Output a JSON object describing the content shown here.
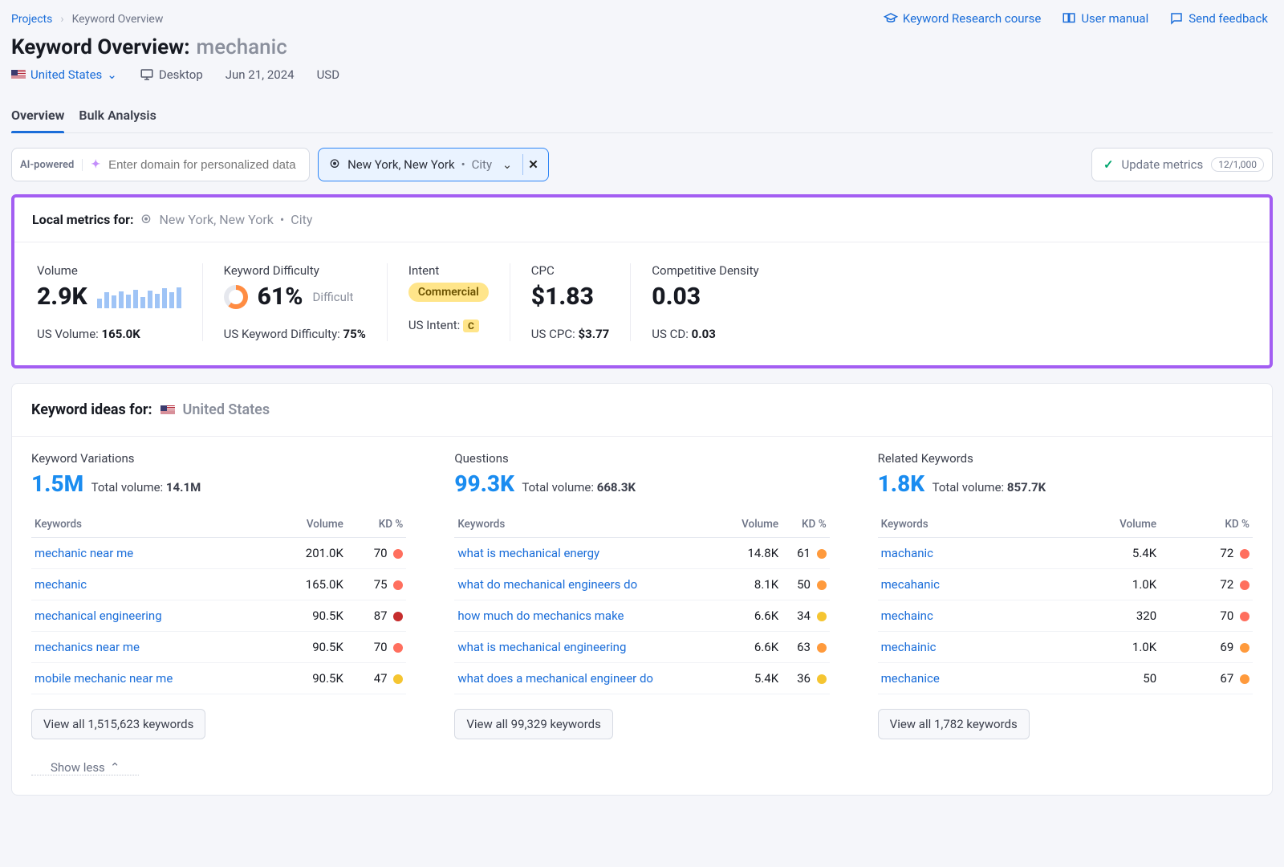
{
  "breadcrumbs": {
    "root": "Projects",
    "page": "Keyword Overview"
  },
  "toplinks": {
    "course": "Keyword Research course",
    "manual": "User manual",
    "feedback": "Send feedback"
  },
  "header": {
    "title": "Keyword Overview:",
    "keyword": "mechanic",
    "location": "United States",
    "device": "Desktop",
    "date": "Jun 21, 2024",
    "currency": "USD"
  },
  "tabs": {
    "overview": "Overview",
    "bulk": "Bulk Analysis"
  },
  "filters": {
    "ai_label": "AI-powered",
    "domain_placeholder": "Enter domain for personalized data",
    "loc_name": "New York, New York",
    "loc_type": "City",
    "update_label": "Update metrics",
    "update_count": "12/1,000"
  },
  "local": {
    "header_label": "Local metrics for:",
    "loc_name": "New York, New York",
    "loc_type": "City",
    "volume": {
      "label": "Volume",
      "value": "2.9K",
      "sub_label": "US Volume:",
      "sub_value": "165.0K",
      "bars": [
        40,
        70,
        55,
        75,
        60,
        82,
        50,
        78,
        62,
        88,
        70,
        92
      ]
    },
    "kd": {
      "label": "Keyword Difficulty",
      "value": "61%",
      "desc": "Difficult",
      "sub_label": "US Keyword Difficulty:",
      "sub_value": "75%",
      "donut_pct": 61,
      "donut_color": "#ff8c42"
    },
    "intent": {
      "label": "Intent",
      "badge": "Commercial",
      "sub_label": "US Intent:",
      "sub_badge": "C"
    },
    "cpc": {
      "label": "CPC",
      "value": "$1.83",
      "sub_label": "US CPC:",
      "sub_value": "$3.77"
    },
    "cd": {
      "label": "Competitive Density",
      "value": "0.03",
      "sub_label": "US CD:",
      "sub_value": "0.03"
    }
  },
  "ideas": {
    "header_label": "Keyword ideas for:",
    "country": "United States",
    "th_keywords": "Keywords",
    "th_volume": "Volume",
    "th_kd": "KD %",
    "show_less": "Show less",
    "variations": {
      "title": "Keyword Variations",
      "count": "1.5M",
      "totvol_label": "Total volume:",
      "totvol": "14.1M",
      "viewall": "View all 1,515,623 keywords",
      "rows": [
        {
          "kw": "mechanic near me",
          "vol": "201.0K",
          "kd": "70",
          "kdcolor": "#ff6f5e"
        },
        {
          "kw": "mechanic",
          "vol": "165.0K",
          "kd": "75",
          "kdcolor": "#ff6f5e"
        },
        {
          "kw": "mechanical engineering",
          "vol": "90.5K",
          "kd": "87",
          "kdcolor": "#c62d2d"
        },
        {
          "kw": "mechanics near me",
          "vol": "90.5K",
          "kd": "70",
          "kdcolor": "#ff6f5e"
        },
        {
          "kw": "mobile mechanic near me",
          "vol": "90.5K",
          "kd": "47",
          "kdcolor": "#f5c531"
        }
      ]
    },
    "questions": {
      "title": "Questions",
      "count": "99.3K",
      "totvol_label": "Total volume:",
      "totvol": "668.3K",
      "viewall": "View all 99,329 keywords",
      "rows": [
        {
          "kw": "what is mechanical energy",
          "vol": "14.8K",
          "kd": "61",
          "kdcolor": "#ff9a3c"
        },
        {
          "kw": "what do mechanical engineers do",
          "vol": "8.1K",
          "kd": "50",
          "kdcolor": "#ff9a3c"
        },
        {
          "kw": "how much do mechanics make",
          "vol": "6.6K",
          "kd": "34",
          "kdcolor": "#f5c531"
        },
        {
          "kw": "what is mechanical engineering",
          "vol": "6.6K",
          "kd": "63",
          "kdcolor": "#ff9a3c"
        },
        {
          "kw": "what does a mechanical engineer do",
          "vol": "5.4K",
          "kd": "36",
          "kdcolor": "#f5c531"
        }
      ]
    },
    "related": {
      "title": "Related Keywords",
      "count": "1.8K",
      "totvol_label": "Total volume:",
      "totvol": "857.7K",
      "viewall": "View all 1,782 keywords",
      "rows": [
        {
          "kw": "machanic",
          "vol": "5.4K",
          "kd": "72",
          "kdcolor": "#ff6f5e"
        },
        {
          "kw": "mecahanic",
          "vol": "1.0K",
          "kd": "72",
          "kdcolor": "#ff6f5e"
        },
        {
          "kw": "mechainc",
          "vol": "320",
          "kd": "70",
          "kdcolor": "#ff6f5e"
        },
        {
          "kw": "mechainic",
          "vol": "1.0K",
          "kd": "69",
          "kdcolor": "#ff9a3c"
        },
        {
          "kw": "mechanice",
          "vol": "50",
          "kd": "67",
          "kdcolor": "#ff9a3c"
        }
      ]
    }
  }
}
